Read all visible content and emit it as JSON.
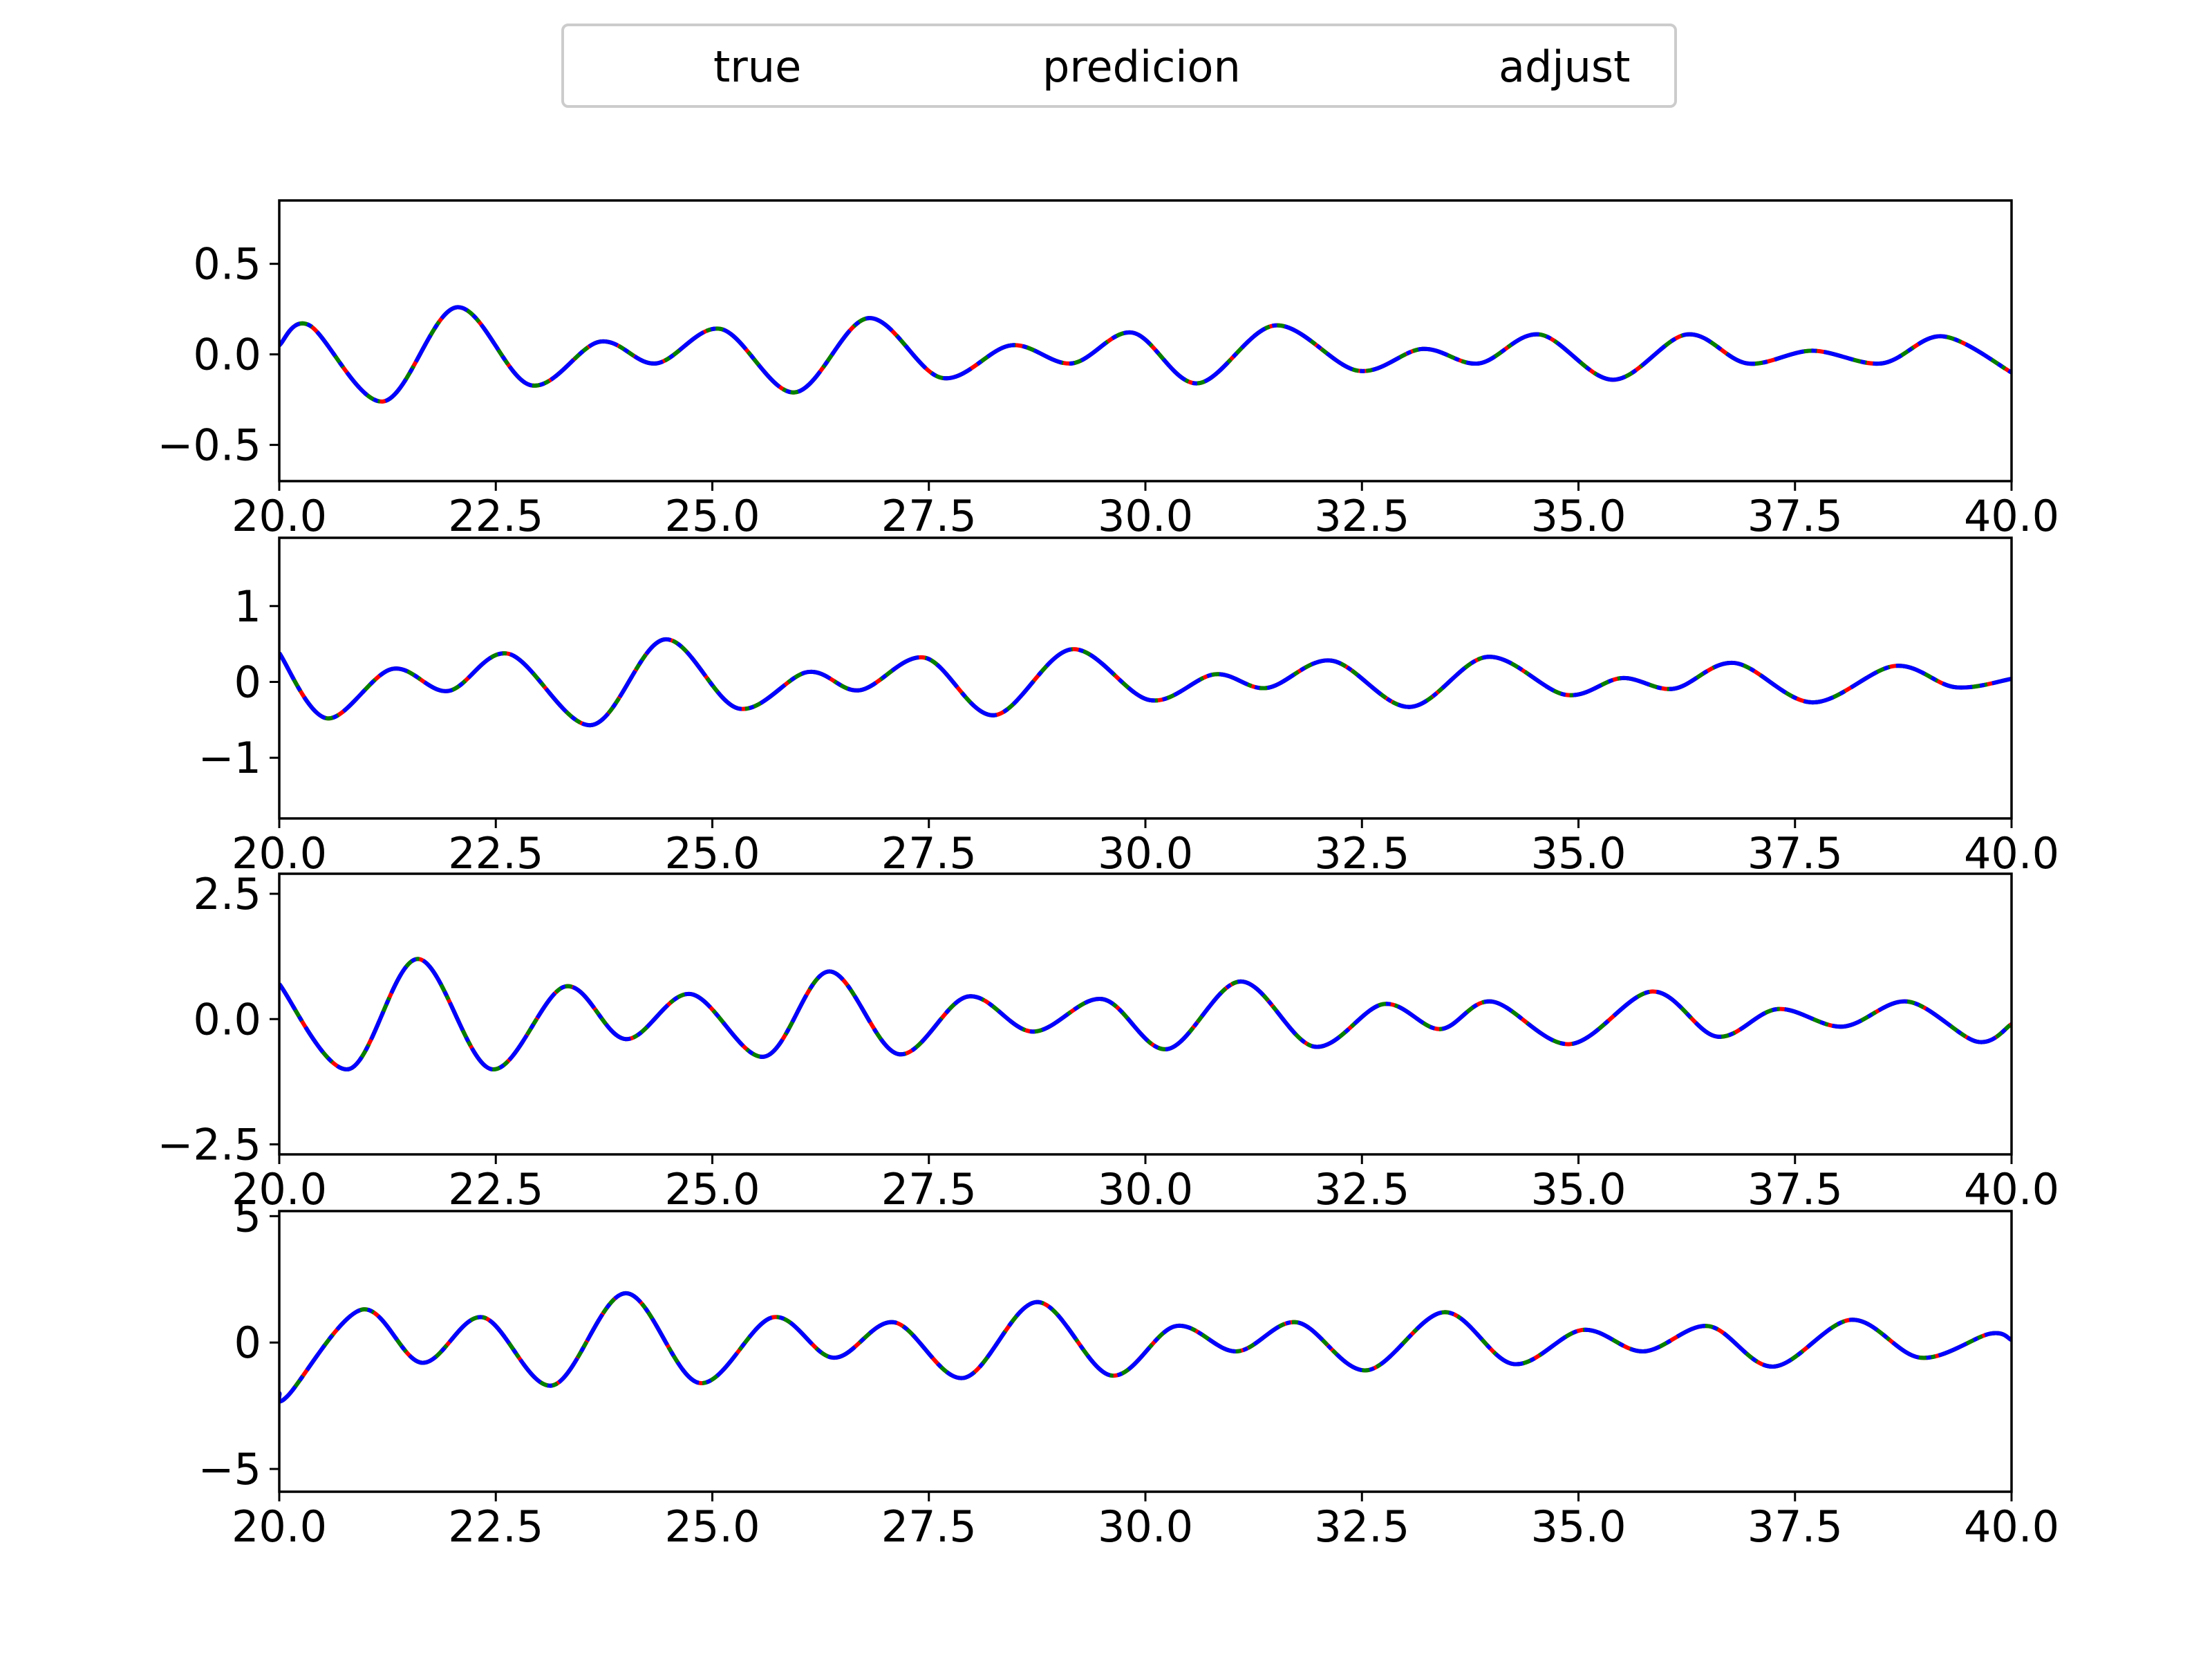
{
  "legend": {
    "entries": [
      {
        "label": "true",
        "color": "#ff0000",
        "style": "solid"
      },
      {
        "label": "predicion",
        "color": "#008000",
        "style": "dashed"
      },
      {
        "label": "adjust",
        "color": "#0000ff",
        "style": "dashdot"
      }
    ]
  },
  "chart_data": [
    {
      "type": "line",
      "title": "",
      "xlabel": "",
      "ylabel": "",
      "xlim": [
        20,
        40
      ],
      "ylim": [
        -0.7,
        0.85
      ],
      "xticks": [
        "20.0",
        "22.5",
        "25.0",
        "27.5",
        "30.0",
        "32.5",
        "35.0",
        "37.5",
        "40.0"
      ],
      "yticks": [
        -0.5,
        0.0,
        0.5
      ],
      "ytick_labels": [
        "−0.5",
        "0.0",
        "0.5"
      ],
      "grid": false,
      "x": [
        20.0,
        20.35,
        21.2,
        22.05,
        22.9,
        23.7,
        24.35,
        25.1,
        25.95,
        26.8,
        27.65,
        28.45,
        29.15,
        29.85,
        30.6,
        31.5,
        32.45,
        33.2,
        33.85,
        34.55,
        35.4,
        36.25,
        36.95,
        37.7,
        38.5,
        39.2,
        40.0
      ],
      "series": [
        {
          "name": "true",
          "values": [
            0.05,
            0.16,
            -0.26,
            0.26,
            -0.17,
            0.07,
            -0.05,
            0.14,
            -0.21,
            0.2,
            -0.13,
            0.05,
            -0.05,
            0.12,
            -0.16,
            0.16,
            -0.09,
            0.03,
            -0.05,
            0.11,
            -0.14,
            0.11,
            -0.05,
            0.02,
            -0.05,
            0.1,
            -0.1
          ]
        },
        {
          "name": "predicion",
          "values": [
            0.05,
            0.16,
            -0.26,
            0.26,
            -0.17,
            0.07,
            -0.05,
            0.14,
            -0.21,
            0.2,
            -0.13,
            0.05,
            -0.05,
            0.12,
            -0.16,
            0.16,
            -0.09,
            0.03,
            -0.05,
            0.11,
            -0.14,
            0.11,
            -0.05,
            0.02,
            -0.05,
            0.1,
            -0.1
          ]
        },
        {
          "name": "adjust",
          "values": [
            0.05,
            0.16,
            -0.26,
            0.26,
            -0.17,
            0.07,
            -0.05,
            0.14,
            -0.21,
            0.2,
            -0.13,
            0.05,
            -0.05,
            0.12,
            -0.16,
            0.16,
            -0.09,
            0.03,
            -0.05,
            0.11,
            -0.14,
            0.11,
            -0.05,
            0.02,
            -0.05,
            0.1,
            -0.1
          ]
        }
      ]
    },
    {
      "type": "line",
      "title": "",
      "xlabel": "",
      "ylabel": "",
      "xlim": [
        20,
        40
      ],
      "ylim": [
        -1.8,
        1.9
      ],
      "xticks": [
        "20.0",
        "22.5",
        "25.0",
        "27.5",
        "30.0",
        "32.5",
        "35.0",
        "37.5",
        "40.0"
      ],
      "yticks": [
        -1,
        0,
        1
      ],
      "ytick_labels": [
        "−1",
        "0",
        "1"
      ],
      "grid": false,
      "x": [
        20.0,
        20.55,
        21.3,
        21.95,
        22.65,
        23.6,
        24.45,
        25.3,
        26.1,
        26.7,
        27.45,
        28.25,
        29.15,
        30.05,
        30.8,
        31.4,
        32.15,
        33.05,
        33.95,
        34.85,
        35.5,
        36.1,
        36.8,
        37.7,
        38.65,
        39.35,
        40.0
      ],
      "series": [
        {
          "name": "true",
          "values": [
            0.38,
            -0.48,
            0.17,
            -0.12,
            0.37,
            -0.57,
            0.56,
            -0.35,
            0.13,
            -0.11,
            0.32,
            -0.44,
            0.43,
            -0.24,
            0.1,
            -0.08,
            0.28,
            -0.33,
            0.33,
            -0.17,
            0.05,
            -0.09,
            0.25,
            -0.27,
            0.21,
            -0.07,
            0.04
          ]
        },
        {
          "name": "predicion",
          "values": [
            0.38,
            -0.48,
            0.17,
            -0.12,
            0.37,
            -0.57,
            0.56,
            -0.35,
            0.13,
            -0.11,
            0.32,
            -0.44,
            0.43,
            -0.24,
            0.1,
            -0.08,
            0.28,
            -0.33,
            0.33,
            -0.17,
            0.05,
            -0.09,
            0.25,
            -0.27,
            0.21,
            -0.07,
            0.04
          ]
        },
        {
          "name": "adjust",
          "values": [
            0.38,
            -0.48,
            0.17,
            -0.12,
            0.37,
            -0.57,
            0.56,
            -0.35,
            0.13,
            -0.11,
            0.32,
            -0.44,
            0.43,
            -0.24,
            0.1,
            -0.08,
            0.28,
            -0.33,
            0.33,
            -0.17,
            0.05,
            -0.09,
            0.25,
            -0.27,
            0.21,
            -0.07,
            0.04
          ]
        }
      ]
    },
    {
      "type": "line",
      "title": "",
      "xlabel": "",
      "ylabel": "",
      "xlim": [
        20,
        40
      ],
      "ylim": [
        -2.7,
        2.9
      ],
      "xticks": [
        "20.0",
        "22.5",
        "25.0",
        "27.5",
        "30.0",
        "32.5",
        "35.0",
        "37.5",
        "40.0"
      ],
      "yticks": [
        -2.5,
        0.0,
        2.5
      ],
      "ytick_labels": [
        "−2.5",
        "0.0",
        "2.5"
      ],
      "grid": false,
      "x": [
        20.0,
        20.8,
        21.6,
        22.45,
        23.3,
        24.0,
        24.75,
        25.6,
        26.35,
        27.15,
        27.95,
        28.7,
        29.5,
        30.25,
        31.1,
        31.95,
        32.75,
        33.4,
        34.0,
        34.9,
        35.85,
        36.6,
        37.3,
        38.05,
        38.8,
        39.6,
        40.0
      ],
      "series": [
        {
          "name": "true",
          "values": [
            0.7,
            -1.0,
            1.2,
            -1.0,
            0.65,
            -0.4,
            0.5,
            -0.75,
            0.95,
            -0.7,
            0.45,
            -0.25,
            0.4,
            -0.6,
            0.75,
            -0.55,
            0.3,
            -0.2,
            0.35,
            -0.5,
            0.55,
            -0.35,
            0.2,
            -0.15,
            0.35,
            -0.45,
            -0.1
          ]
        },
        {
          "name": "predicion",
          "values": [
            0.7,
            -1.0,
            1.2,
            -1.0,
            0.65,
            -0.4,
            0.5,
            -0.75,
            0.95,
            -0.7,
            0.45,
            -0.25,
            0.4,
            -0.6,
            0.75,
            -0.55,
            0.3,
            -0.2,
            0.35,
            -0.5,
            0.55,
            -0.35,
            0.2,
            -0.15,
            0.35,
            -0.45,
            -0.1
          ]
        },
        {
          "name": "adjust",
          "values": [
            0.7,
            -1.0,
            1.2,
            -1.0,
            0.65,
            -0.4,
            0.5,
            -0.75,
            0.95,
            -0.7,
            0.45,
            -0.25,
            0.4,
            -0.6,
            0.75,
            -0.55,
            0.3,
            -0.2,
            0.35,
            -0.5,
            0.55,
            -0.35,
            0.2,
            -0.15,
            0.35,
            -0.45,
            -0.1
          ]
        }
      ]
    },
    {
      "type": "line",
      "title": "",
      "xlabel": "",
      "ylabel": "",
      "xlim": [
        20,
        40
      ],
      "ylim": [
        -5.9,
        5.2
      ],
      "xticks": [
        "20.0",
        "22.5",
        "25.0",
        "27.5",
        "30.0",
        "32.5",
        "35.0",
        "37.5",
        "40.0"
      ],
      "yticks": [
        -5,
        0,
        5
      ],
      "ytick_labels": [
        "−5",
        "0",
        "5"
      ],
      "grid": false,
      "x": [
        20.0,
        20.1,
        20.95,
        21.65,
        22.35,
        23.15,
        24.0,
        24.85,
        25.7,
        26.4,
        27.1,
        27.9,
        28.75,
        29.6,
        30.35,
        31.05,
        31.75,
        32.55,
        33.45,
        34.25,
        35.05,
        35.75,
        36.5,
        37.25,
        38.15,
        38.95,
        39.75,
        40.0
      ],
      "series": [
        {
          "name": "true",
          "values": [
            -2.0,
            -2.1,
            1.3,
            -0.8,
            1.0,
            -1.7,
            1.95,
            -1.6,
            1.0,
            -0.6,
            0.8,
            -1.4,
            1.6,
            -1.3,
            0.65,
            -0.35,
            0.8,
            -1.1,
            1.2,
            -0.85,
            0.5,
            -0.35,
            0.65,
            -0.95,
            0.9,
            -0.6,
            0.35,
            0.1
          ]
        },
        {
          "name": "predicion",
          "values": [
            -2.0,
            -2.1,
            1.3,
            -0.8,
            1.0,
            -1.7,
            1.95,
            -1.6,
            1.0,
            -0.6,
            0.8,
            -1.4,
            1.6,
            -1.3,
            0.65,
            -0.35,
            0.8,
            -1.1,
            1.2,
            -0.85,
            0.5,
            -0.35,
            0.65,
            -0.95,
            0.9,
            -0.6,
            0.35,
            0.1
          ]
        },
        {
          "name": "adjust",
          "values": [
            -2.0,
            -2.1,
            1.3,
            -0.8,
            1.0,
            -1.7,
            1.95,
            -1.6,
            1.0,
            -0.6,
            0.8,
            -1.4,
            1.6,
            -1.3,
            0.65,
            -0.35,
            0.8,
            -1.1,
            1.2,
            -0.85,
            0.5,
            -0.35,
            0.65,
            -0.95,
            0.9,
            -0.6,
            0.35,
            0.1
          ]
        }
      ]
    }
  ]
}
